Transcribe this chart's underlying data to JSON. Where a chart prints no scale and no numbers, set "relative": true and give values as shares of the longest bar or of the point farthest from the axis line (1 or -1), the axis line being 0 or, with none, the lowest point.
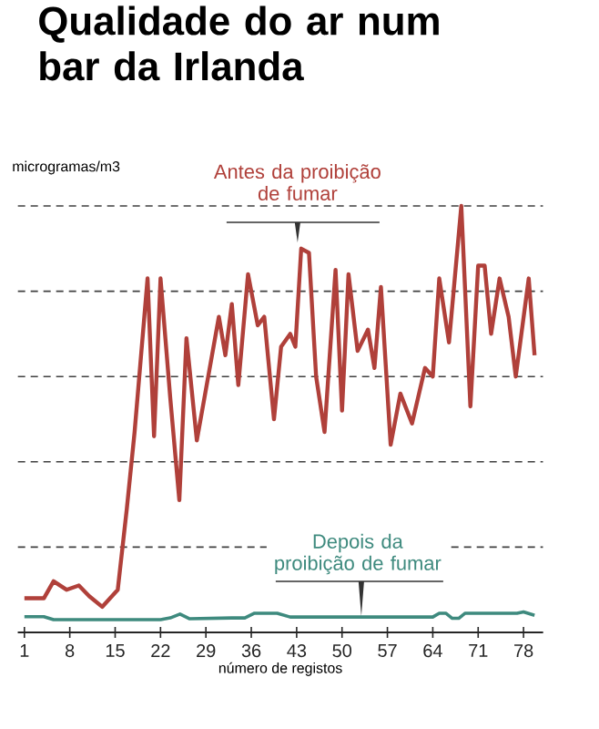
{
  "chart_data": {
    "type": "line",
    "title": "Qualidade do ar num bar da Irlanda",
    "ylabel": "microgramas/m3",
    "xlabel": "número de registos",
    "relative": true,
    "grid": "y",
    "xlim": [
      0,
      81
    ],
    "xticks": [
      1,
      8,
      15,
      22,
      29,
      36,
      43,
      50,
      57,
      64,
      71,
      78
    ],
    "series": [
      {
        "name": "Antes da proibição de fumar",
        "color": "#b0403a",
        "x": [
          1,
          4,
          5.5,
          7.5,
          9.4,
          11,
          13,
          15.4,
          16.8,
          18,
          20,
          21,
          22,
          23.5,
          24.9,
          26,
          27.6,
          31,
          32,
          33,
          34,
          35.5,
          37,
          38,
          39.5,
          40.6,
          42,
          42.8,
          43.7,
          44.9,
          46,
          47.3,
          49,
          50,
          51,
          52.4,
          54,
          55,
          56,
          57.5,
          59,
          60.8,
          62.8,
          64,
          65,
          66.5,
          68.4,
          69.8,
          71,
          72,
          73,
          74.3,
          75.7,
          76.8,
          78.8,
          79.7
        ],
        "values": [
          0.08,
          0.08,
          0.12,
          0.1,
          0.11,
          0.085,
          0.06,
          0.1,
          0.29,
          0.47,
          0.83,
          0.46,
          0.83,
          0.55,
          0.31,
          0.69,
          0.45,
          0.74,
          0.65,
          0.77,
          0.58,
          0.84,
          0.72,
          0.74,
          0.5,
          0.67,
          0.7,
          0.67,
          0.9,
          0.89,
          0.6,
          0.47,
          0.85,
          0.52,
          0.84,
          0.66,
          0.71,
          0.62,
          0.81,
          0.44,
          0.56,
          0.49,
          0.62,
          0.6,
          0.83,
          0.68,
          1.0,
          0.53,
          0.86,
          0.86,
          0.7,
          0.83,
          0.74,
          0.6,
          0.83,
          0.65
        ]
      },
      {
        "name": "Depois da proibição de fumar",
        "color": "#3e8a7e",
        "x": [
          1,
          4,
          5.5,
          22,
          23.5,
          25,
          26.5,
          33,
          35,
          36.5,
          40,
          42,
          64,
          65,
          66,
          67,
          68,
          69,
          77,
          78,
          79.7
        ],
        "values": [
          0.037,
          0.037,
          0.03,
          0.03,
          0.034,
          0.043,
          0.032,
          0.034,
          0.034,
          0.045,
          0.045,
          0.036,
          0.036,
          0.045,
          0.045,
          0.033,
          0.033,
          0.045,
          0.045,
          0.048,
          0.04
        ]
      }
    ]
  }
}
